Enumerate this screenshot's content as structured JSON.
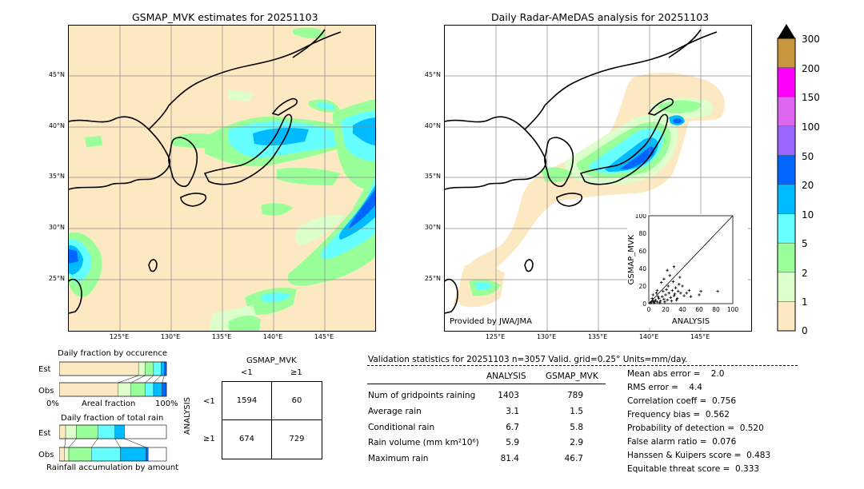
{
  "left_map": {
    "title": "GSMAP_MVK estimates for 20251103",
    "lat_labels": [
      "45°N",
      "40°N",
      "35°N",
      "30°N",
      "25°N"
    ],
    "lon_labels": [
      "125°E",
      "130°E",
      "135°E",
      "140°E",
      "145°E"
    ]
  },
  "right_map": {
    "title": "Daily Radar-AMeDAS analysis for 20251103",
    "lat_labels": [
      "45°N",
      "40°N",
      "35°N",
      "30°N",
      "25°N"
    ],
    "lon_labels": [
      "125°E",
      "130°E",
      "135°E",
      "140°E",
      "145°E"
    ],
    "credit": "Provided by JWA/JMA"
  },
  "colorbar": {
    "labels": [
      "300",
      "200",
      "150",
      "100",
      "50",
      "20",
      "10",
      "5",
      "2",
      "1",
      "0"
    ],
    "colors": [
      "#c8963c",
      "#ff00ff",
      "#dd66ee",
      "#9966ff",
      "#0066ff",
      "#00bbff",
      "#66ffff",
      "#99ff99",
      "#ddffcc",
      "#fde9c1"
    ]
  },
  "chart_data": [
    {
      "type": "scatter",
      "xlabel": "ANALYSIS",
      "ylabel": "GSMAP_MVK",
      "xlim": [
        0,
        100
      ],
      "ylim": [
        0,
        100
      ],
      "x_ticks": [
        "0",
        "20",
        "40",
        "60",
        "80",
        "100"
      ],
      "y_ticks": [
        "0",
        "20",
        "40",
        "60",
        "80",
        "100"
      ],
      "points": [
        [
          2,
          1
        ],
        [
          3,
          2
        ],
        [
          5,
          3
        ],
        [
          6,
          1
        ],
        [
          8,
          4
        ],
        [
          10,
          2
        ],
        [
          12,
          6
        ],
        [
          14,
          3
        ],
        [
          16,
          8
        ],
        [
          18,
          5
        ],
        [
          20,
          10
        ],
        [
          22,
          4
        ],
        [
          24,
          12
        ],
        [
          26,
          7
        ],
        [
          28,
          15
        ],
        [
          30,
          9
        ],
        [
          32,
          18
        ],
        [
          34,
          6
        ],
        [
          36,
          22
        ],
        [
          38,
          12
        ],
        [
          15,
          24
        ],
        [
          18,
          28
        ],
        [
          25,
          32
        ],
        [
          30,
          42
        ],
        [
          22,
          38
        ],
        [
          10,
          15
        ],
        [
          5,
          10
        ],
        [
          40,
          20
        ],
        [
          45,
          12
        ],
        [
          50,
          8
        ],
        [
          60,
          10
        ],
        [
          62,
          14
        ],
        [
          82,
          14
        ],
        [
          4,
          6
        ],
        [
          7,
          2
        ],
        [
          9,
          12
        ],
        [
          11,
          8
        ],
        [
          13,
          1
        ],
        [
          17,
          14
        ],
        [
          19,
          2
        ],
        [
          21,
          16
        ],
        [
          23,
          20
        ],
        [
          27,
          3
        ],
        [
          29,
          25
        ],
        [
          31,
          11
        ],
        [
          33,
          4
        ],
        [
          35,
          14
        ],
        [
          37,
          30
        ],
        [
          42,
          9
        ],
        [
          48,
          15
        ]
      ]
    },
    {
      "type": "bar",
      "title": "Daily fraction by occurence",
      "categories": [
        "Est",
        "Obs"
      ],
      "xlabel_left": "0%",
      "xlabel_mid": "Areal fraction",
      "xlabel_right": "100%",
      "series": [
        {
          "values": [
            0.74,
            0.55
          ]
        },
        {
          "values": [
            0.06,
            0.12
          ]
        },
        {
          "values": [
            0.08,
            0.13
          ]
        },
        {
          "values": [
            0.07,
            0.08
          ]
        },
        {
          "values": [
            0.03,
            0.08
          ]
        },
        {
          "values": [
            0.02,
            0.04
          ]
        }
      ]
    },
    {
      "type": "bar",
      "title": "Daily fraction of total rain",
      "categories": [
        "Est",
        "Obs"
      ],
      "xlabel_mid": "Rainfall accumulation by amount",
      "series": [
        {
          "values": [
            0.06,
            0.05
          ]
        },
        {
          "values": [
            0.1,
            0.04
          ]
        },
        {
          "values": [
            0.2,
            0.21
          ]
        },
        {
          "values": [
            0.16,
            0.27
          ]
        },
        {
          "values": [
            0.09,
            0.24
          ]
        },
        {
          "values": [
            0.0,
            0.02
          ]
        }
      ]
    }
  ],
  "contingency": {
    "header": "GSMAP_MVK",
    "col_lt": "<1",
    "col_ge": "≥1",
    "row_axis": "ANALYSIS",
    "row_lt": "<1",
    "row_ge": "≥1",
    "a": "1594",
    "b": "60",
    "c": "674",
    "d": "729"
  },
  "validation": {
    "header": "Validation statistics for 20251103  n=3057 Valid. grid=0.25° Units=mm/day.",
    "col_analysis": "ANALYSIS",
    "col_gsmap": "GSMAP_MVK",
    "rows": [
      {
        "label": "Num of gridpoints raining",
        "analysis": "1403",
        "gsmap": "789"
      },
      {
        "label": "Average rain",
        "analysis": "3.1",
        "gsmap": "1.5"
      },
      {
        "label": "Conditional rain",
        "analysis": "6.7",
        "gsmap": "5.8"
      },
      {
        "label": "Rain volume (mm km²10⁶)",
        "analysis": "5.9",
        "gsmap": "2.9"
      },
      {
        "label": "Maximum rain",
        "analysis": "81.4",
        "gsmap": "46.7"
      }
    ],
    "scores": [
      "Mean abs error =    2.0",
      "RMS error =    4.4",
      "Correlation coeff =  0.756",
      "Frequency bias =  0.562",
      "Probability of detection =  0.520",
      "False alarm ratio =  0.076",
      "Hanssen & Kuipers score =  0.483",
      "Equitable threat score =  0.333"
    ]
  }
}
